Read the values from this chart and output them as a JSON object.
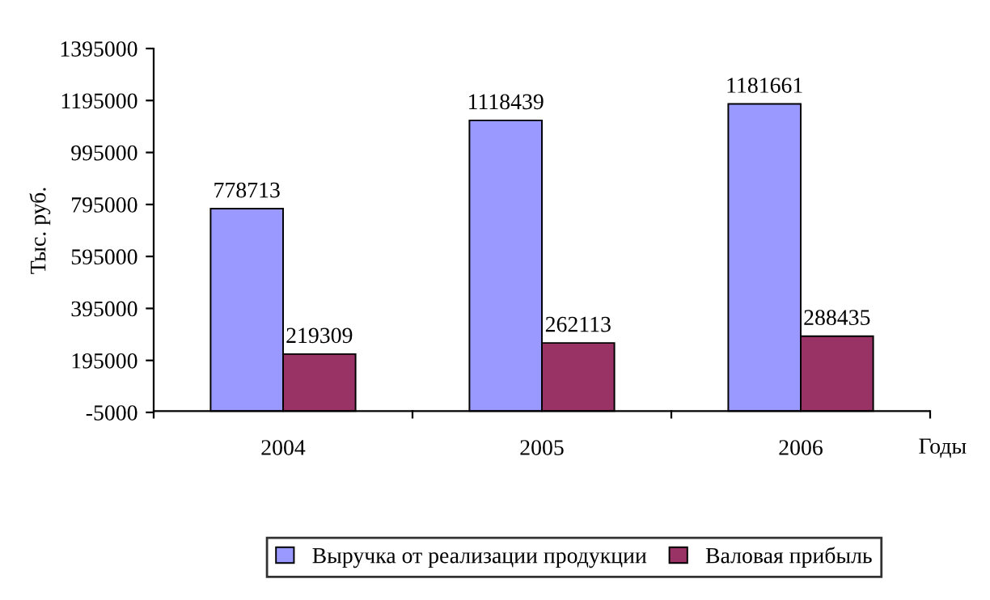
{
  "chart_data": {
    "type": "bar",
    "ylabel": "Тыс. руб.",
    "xlabel": "Годы",
    "categories": [
      "2004",
      "2005",
      "2006"
    ],
    "series": [
      {
        "name": "Выручка от реализации продукции",
        "color": "#9999ff",
        "values": [
          778713,
          1118439,
          1181661
        ]
      },
      {
        "name": "Валовая прибыль",
        "color": "#993366",
        "values": [
          219309,
          262113,
          288435
        ]
      }
    ],
    "ylim": [
      -5000,
      1395000
    ],
    "yticks": [
      -5000,
      195000,
      395000,
      595000,
      795000,
      995000,
      1195000,
      1395000
    ],
    "data_labels": true,
    "grid": false,
    "legend": "bottom"
  }
}
